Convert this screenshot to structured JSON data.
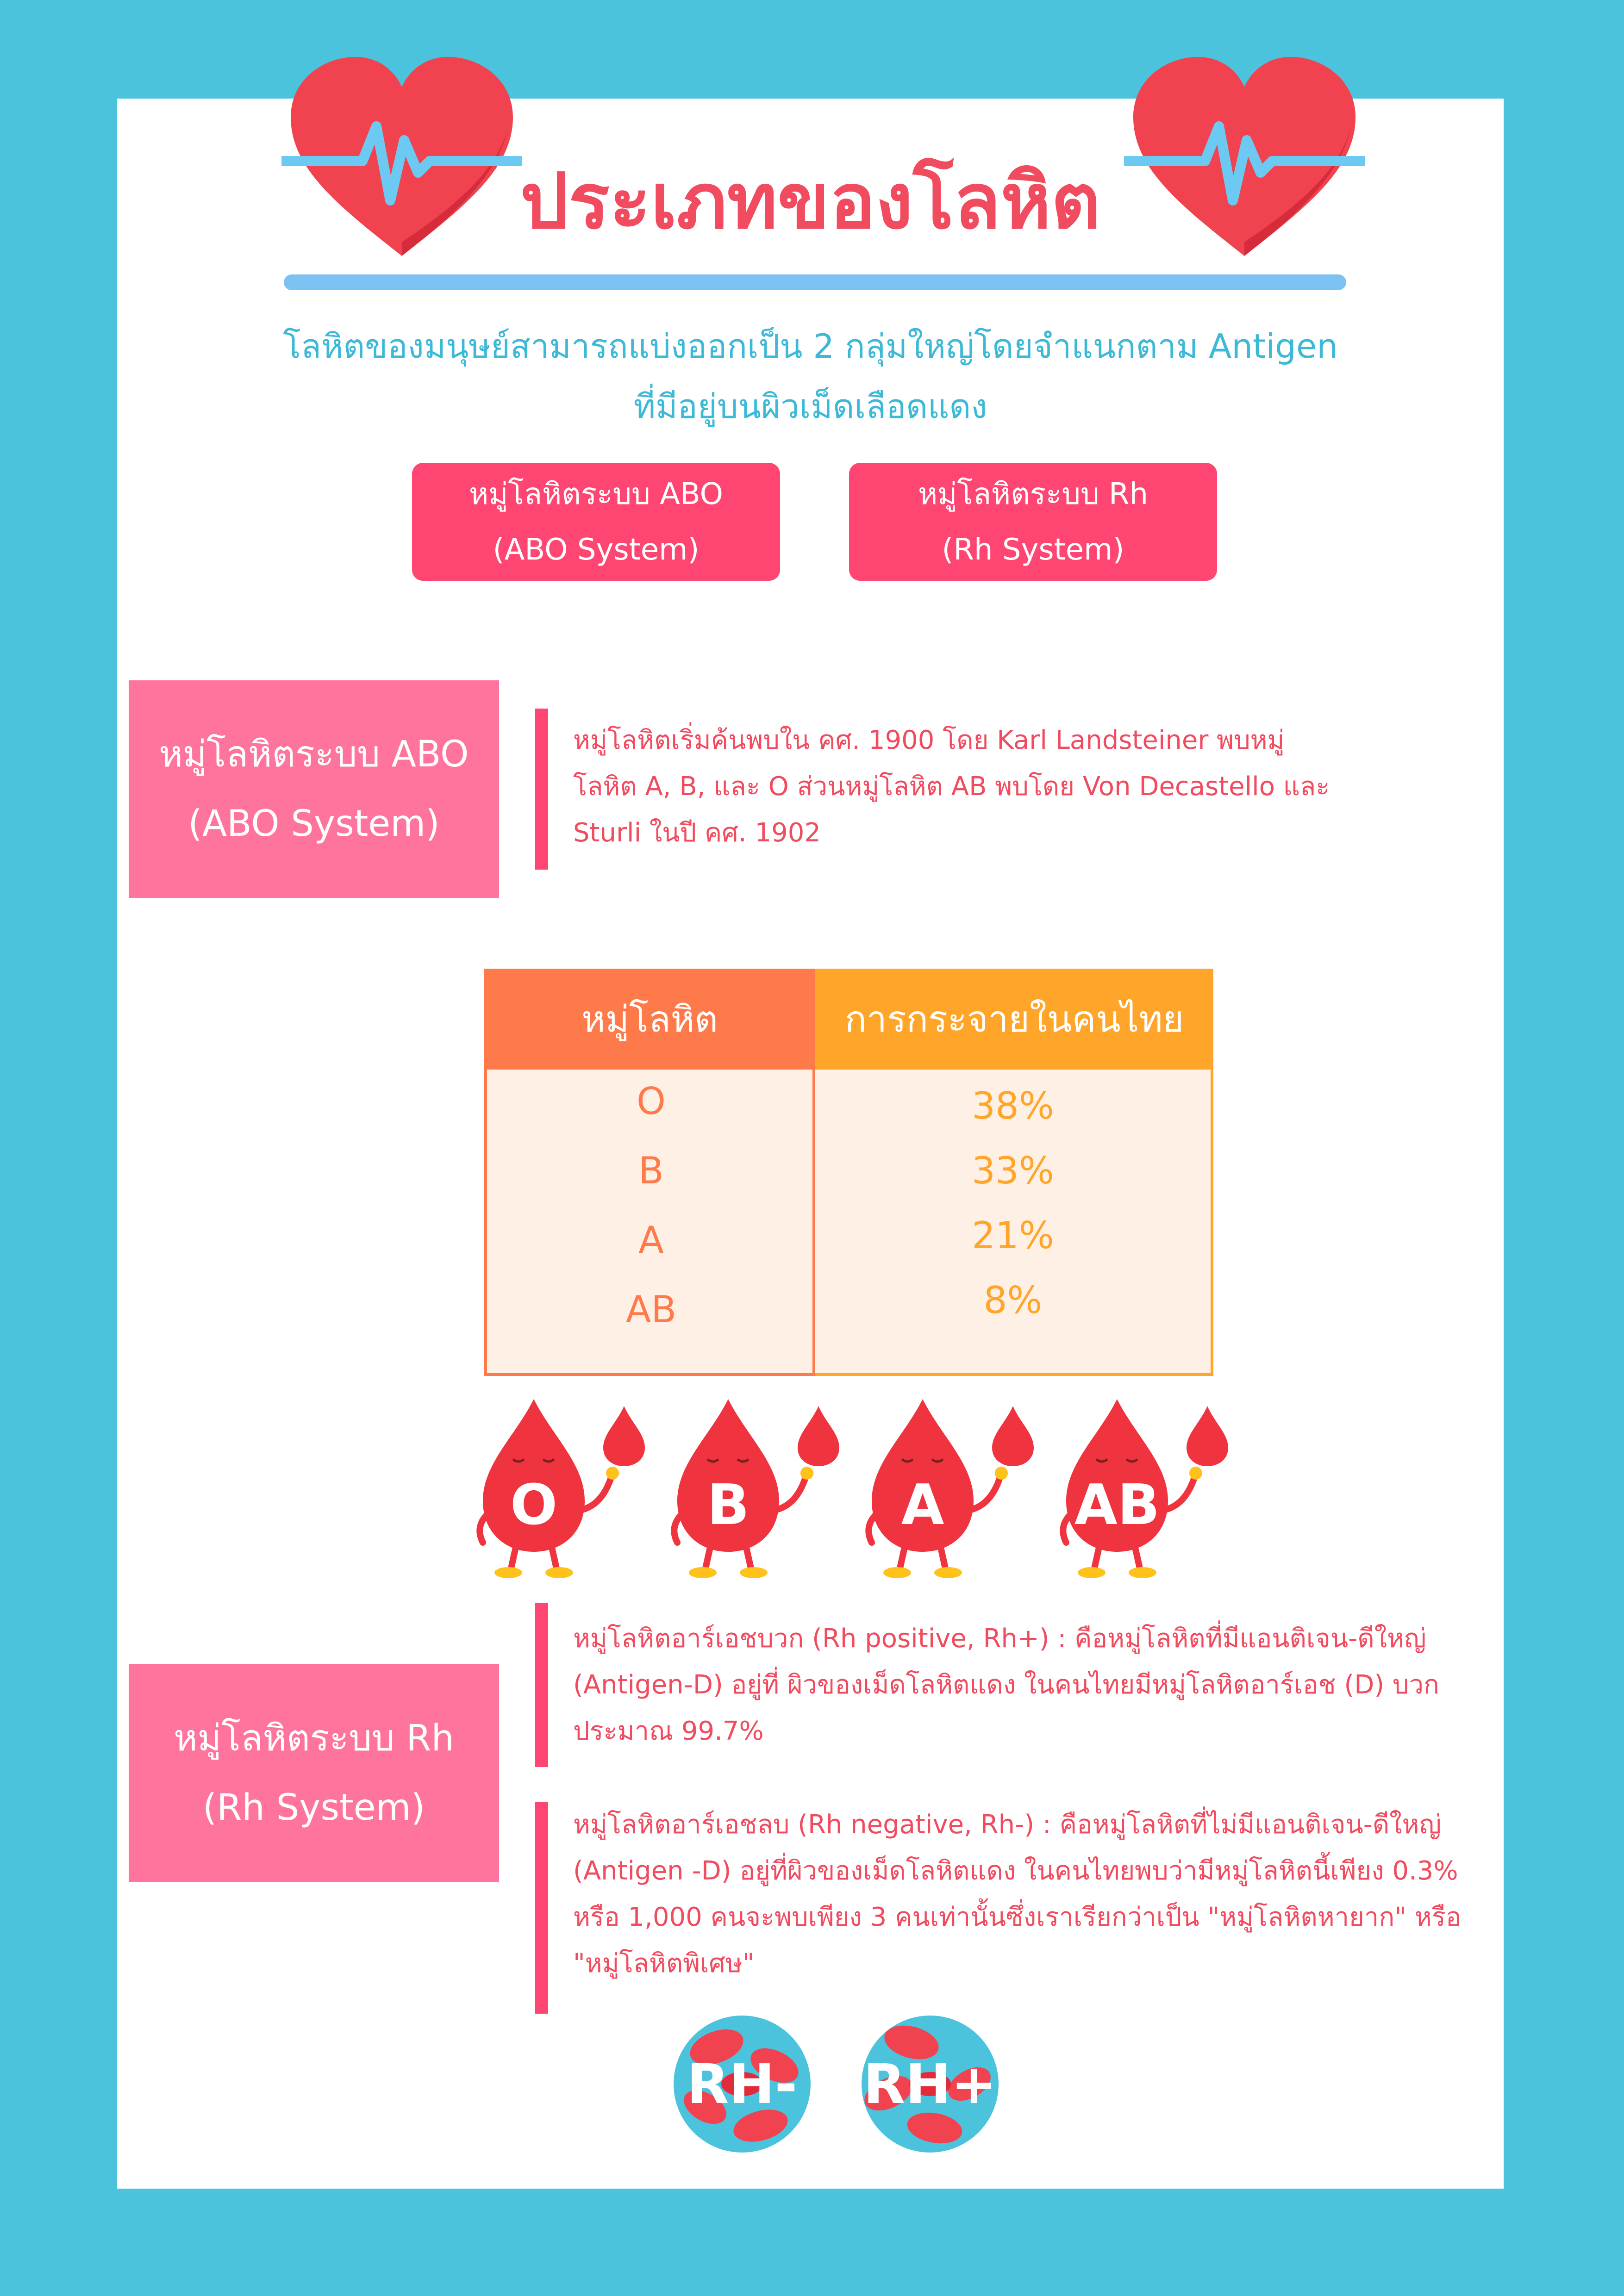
{
  "header": {
    "title": "ประเภทของโลหิต",
    "subtitle_line1": "โลหิตของมนุษย์สามารถแบ่งออกเป็น 2 กลุ่มใหญ่โดยจำแนกตาม Antigen",
    "subtitle_line2": "ที่มีอยู่บนผิวเม็ดเลือดแดง"
  },
  "pills": {
    "abo_line1": "หมู่โลหิตระบบ ABO",
    "abo_line2": "(ABO System)",
    "rh_line1": "หมู่โลหิตระบบ Rh",
    "rh_line2": "(Rh System)"
  },
  "abo_section": {
    "label_line1": "หมู่โลหิตระบบ ABO",
    "label_line2": "(ABO System)",
    "text_line1": " หมู่โลหิตเริ่มค้นพบใน คศ. 1900 โดย Karl Landsteiner พบหมู่",
    "text_line2": "โลหิต A, B, และ O ส่วนหมู่โลหิต AB พบโดย Von Decastello และ",
    "text_line3": "Sturli ในปี คศ. 1902"
  },
  "table": {
    "col1_header": "หมู่โลหิต",
    "col2_header": "การกระจายในคนไทย",
    "rows": [
      {
        "group": "O",
        "percent": "38%"
      },
      {
        "group": "B",
        "percent": "33%"
      },
      {
        "group": "A",
        "percent": "21%"
      },
      {
        "group": "AB",
        "percent": "8%"
      }
    ]
  },
  "drops": {
    "labels": [
      "O",
      "B",
      "A",
      "AB"
    ],
    "color": "#F0343F"
  },
  "rh_section": {
    "label_line1": "หมู่โลหิตระบบ Rh",
    "label_line2": "(Rh System)",
    "pos_line1": "หมู่โลหิตอาร์เอชบวก (Rh positive, Rh+) : คือหมู่โลหิตที่มีแอนติเจน-ดีใหญ่",
    "pos_line2": "(Antigen-D) อยู่ที่ ผิวของเม็ดโลหิตแดง ในคนไทยมีหมู่โลหิตอาร์เอช (D) บวก",
    "pos_line3": "ประมาณ 99.7%",
    "neg_line1": "หมู่โลหิตอาร์เอชลบ (Rh negative, Rh-) : คือหมู่โลหิตที่ไม่มีแอนติเจน-ดีใหญ่",
    "neg_line2": "(Antigen -D) อยู่ที่ผิวของเม็ดโลหิตแดง ในคนไทยพบว่ามีหมู่โลหิตนี้เพียง 0.3%",
    "neg_line3": "หรือ 1,000 คนจะพบเพียง 3 คนเท่านั้นซึ่งเราเรียกว่าเป็น \"หมู่โลหิตหายาก\" หรือ",
    "neg_line4": "\"หมู่โลหิตพิเศษ\""
  },
  "rh_badges": {
    "neg": "RH-",
    "pos": "RH+"
  },
  "colors": {
    "background": "#4BC3DC",
    "accent_pink": "#FF4672",
    "label_pink": "#FF749C",
    "text_red": "#F04B5F",
    "table_orange": "#FF7A4A",
    "table_amber": "#FFA52A"
  }
}
